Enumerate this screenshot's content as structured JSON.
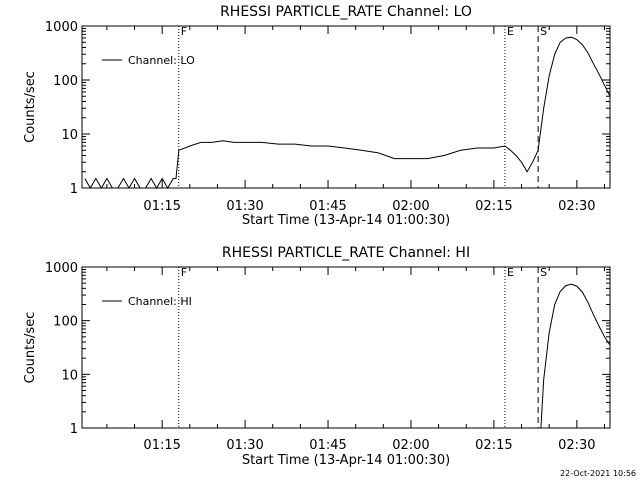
{
  "footer_timestamp": "22-Oct-2021 10:56",
  "chart_data": [
    {
      "type": "line",
      "title": "RHESSI PARTICLE_RATE Channel: LO",
      "xlabel": "Start Time (13-Apr-14 01:00:30)",
      "ylabel": "Counts/sec",
      "yscale": "log",
      "ylim": [
        1,
        1000
      ],
      "x_range_minutes_after_01:00": [
        0.5,
        96
      ],
      "grid": false,
      "legend": {
        "position": "top-left",
        "entries": [
          "Channel: LO"
        ]
      },
      "xtick_labels": [
        "01:15",
        "01:30",
        "01:45",
        "02:00",
        "02:15",
        "02:30"
      ],
      "ytick_labels": [
        "1",
        "10",
        "100",
        "1000"
      ],
      "markers": [
        {
          "label": "F",
          "time": "01:18",
          "style": "dotted"
        },
        {
          "label": "E",
          "time": "02:17",
          "style": "dotted"
        },
        {
          "label": "S",
          "time": "02:23",
          "style": "dashed"
        },
        {
          "label": "",
          "time": "02:36",
          "style": "dashdot"
        }
      ],
      "series": [
        {
          "name": "Channel: LO",
          "x": [
            "01:01",
            "01:02",
            "01:03",
            "01:04",
            "01:05",
            "01:06",
            "01:07",
            "01:08",
            "01:09",
            "01:10",
            "01:11",
            "01:12",
            "01:13",
            "01:14",
            "01:15",
            "01:16",
            "01:17",
            "01:17.5",
            "01:18",
            "01:20",
            "01:22",
            "01:24",
            "01:26",
            "01:28",
            "01:30",
            "01:33",
            "01:36",
            "01:39",
            "01:42",
            "01:45",
            "01:48",
            "01:51",
            "01:54",
            "01:57",
            "02:00",
            "02:03",
            "02:06",
            "02:09",
            "02:12",
            "02:15",
            "02:17",
            "02:18",
            "02:19",
            "02:20",
            "02:21",
            "02:22",
            "02:23",
            "02:24",
            "02:25",
            "02:26",
            "02:27",
            "02:28",
            "02:29",
            "02:30",
            "02:31",
            "02:32",
            "02:33",
            "02:34",
            "02:35",
            "02:36"
          ],
          "values": [
            1.5,
            1,
            1.5,
            1,
            1.5,
            1,
            1,
            1.5,
            1,
            1.5,
            1,
            1,
            1.5,
            1,
            1.5,
            1,
            1.5,
            1.5,
            5,
            6,
            7,
            7,
            7.5,
            7,
            7,
            7,
            6.5,
            6.5,
            6,
            6,
            5.5,
            5,
            4.5,
            3.5,
            3.5,
            3.5,
            4,
            5,
            5.5,
            5.5,
            6,
            5,
            4,
            3,
            2,
            3,
            5,
            30,
            120,
            300,
            500,
            600,
            620,
            560,
            450,
            320,
            200,
            130,
            80,
            50
          ]
        }
      ]
    },
    {
      "type": "line",
      "title": "RHESSI PARTICLE_RATE Channel: HI",
      "xlabel": "Start Time (13-Apr-14 01:00:30)",
      "ylabel": "Counts/sec",
      "yscale": "log",
      "ylim": [
        1,
        1000
      ],
      "x_range_minutes_after_01:00": [
        0.5,
        96
      ],
      "grid": false,
      "legend": {
        "position": "top-left",
        "entries": [
          "Channel: HI"
        ]
      },
      "xtick_labels": [
        "01:15",
        "01:30",
        "01:45",
        "02:00",
        "02:15",
        "02:30"
      ],
      "ytick_labels": [
        "1",
        "10",
        "100",
        "1000"
      ],
      "markers": [
        {
          "label": "F",
          "time": "01:18",
          "style": "dotted"
        },
        {
          "label": "E",
          "time": "02:17",
          "style": "dotted"
        },
        {
          "label": "S",
          "time": "02:23",
          "style": "dashed"
        },
        {
          "label": "",
          "time": "02:36",
          "style": "dashdot"
        }
      ],
      "series": [
        {
          "name": "Channel: HI",
          "x": [
            "02:23.5",
            "02:24",
            "02:25",
            "02:26",
            "02:27",
            "02:28",
            "02:29",
            "02:30",
            "02:31",
            "02:32",
            "02:33",
            "02:34",
            "02:35",
            "02:36"
          ],
          "values": [
            1,
            8,
            60,
            200,
            350,
            450,
            480,
            440,
            340,
            220,
            130,
            80,
            50,
            35
          ]
        }
      ]
    }
  ]
}
